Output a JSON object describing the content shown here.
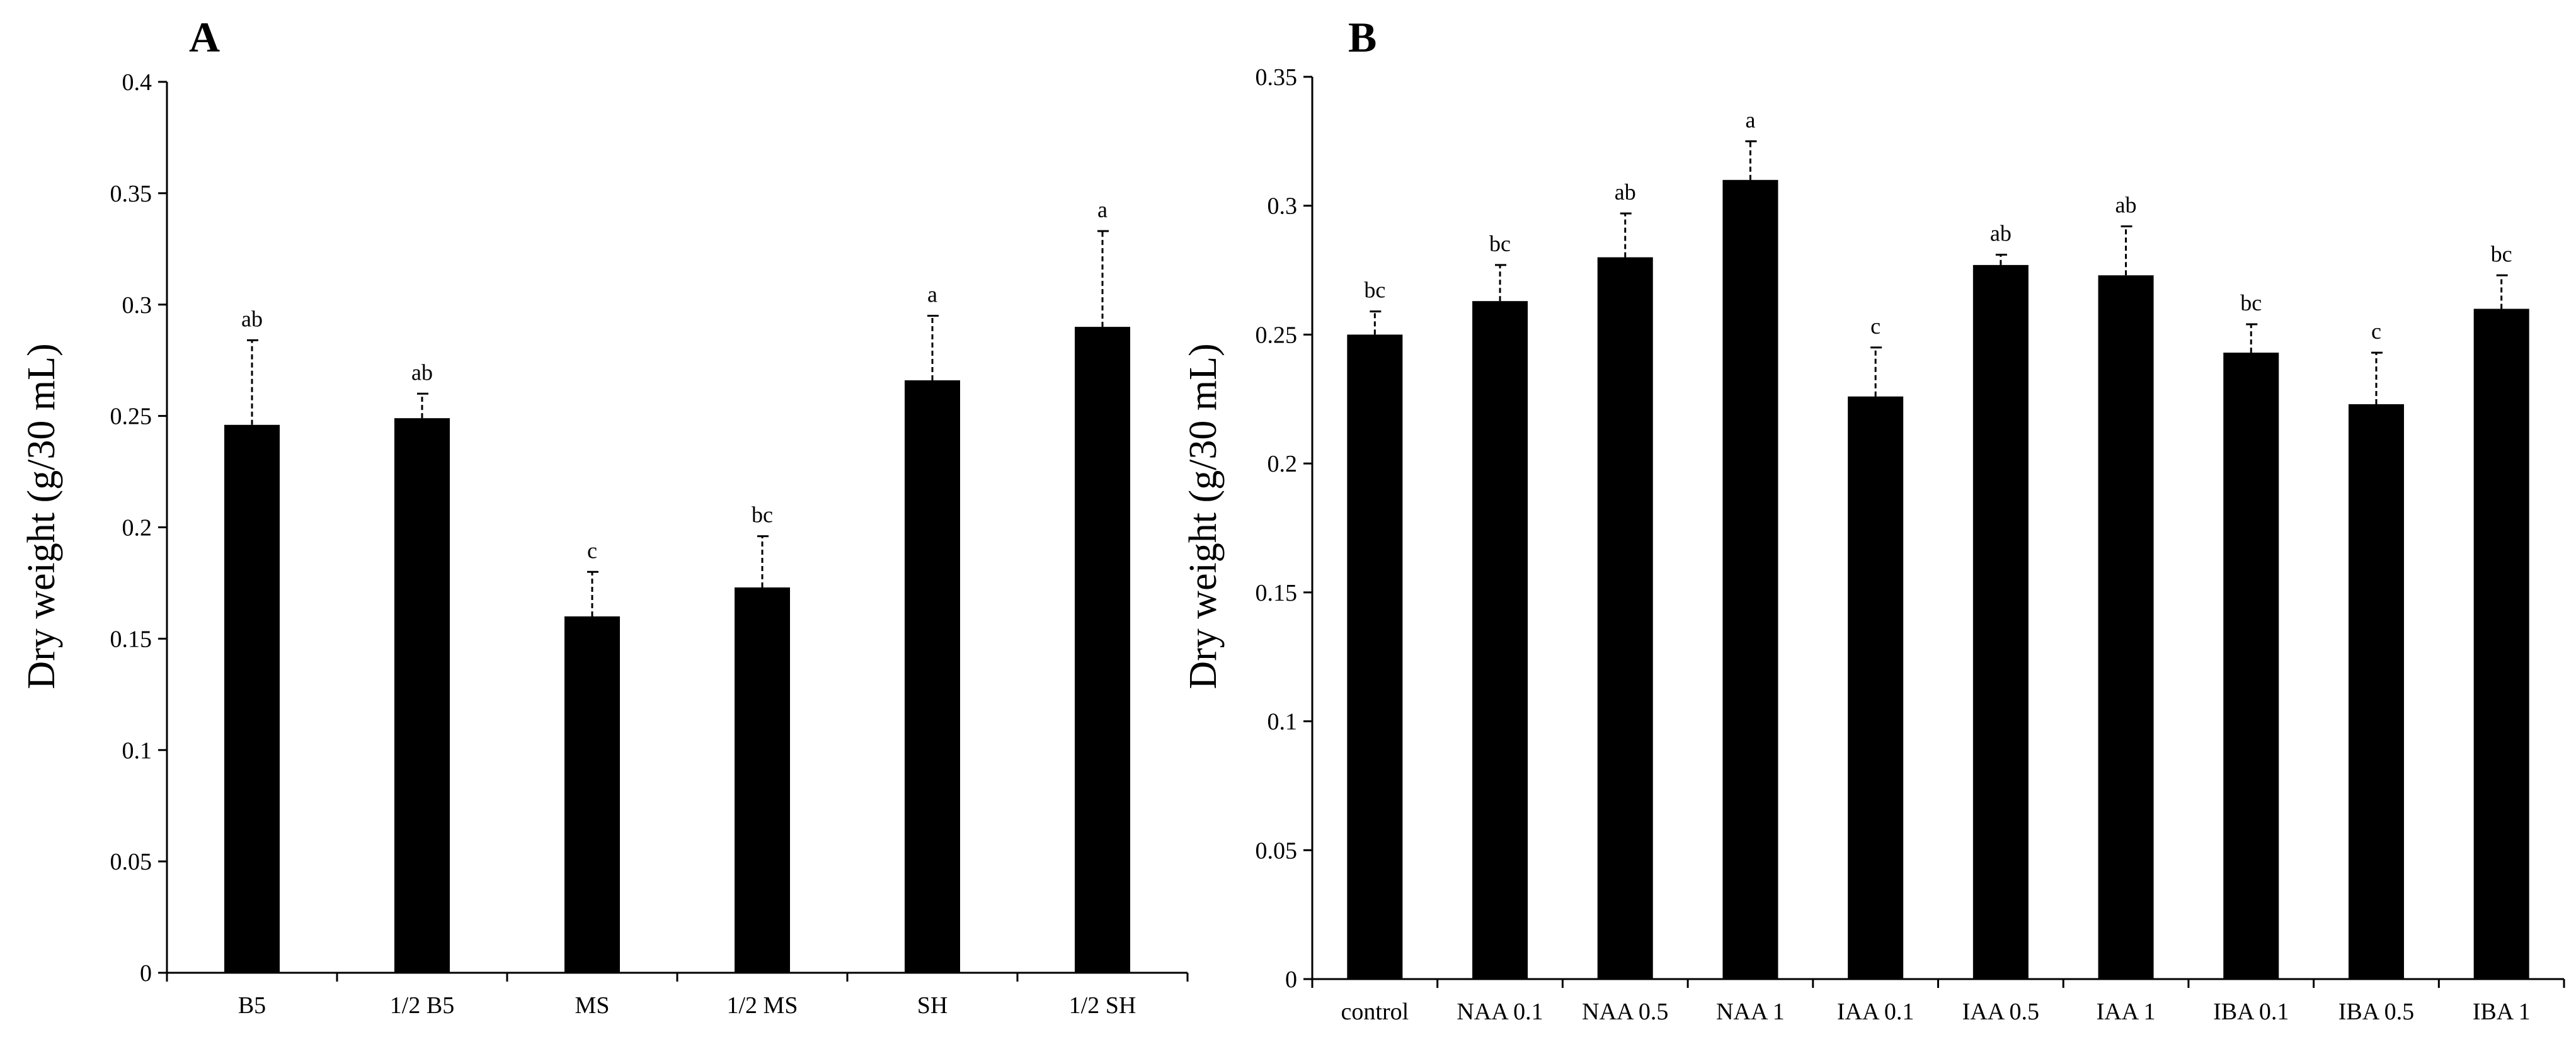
{
  "chart_data": [
    {
      "type": "bar",
      "panel": "A",
      "ylabel": "Dry weight (g/30 mL)",
      "ylim": [
        0,
        0.4
      ],
      "yticks": [
        "0",
        "0.05",
        "0.1",
        "0.15",
        "0.2",
        "0.25",
        "0.3",
        "0.35",
        "0.4"
      ],
      "ytick_values": [
        0,
        0.05,
        0.1,
        0.15,
        0.2,
        0.25,
        0.3,
        0.35,
        0.4
      ],
      "categories": [
        "B5",
        "1/2 B5",
        "MS",
        "1/2 MS",
        "SH",
        "1/2 SH"
      ],
      "values": [
        0.246,
        0.249,
        0.16,
        0.173,
        0.266,
        0.29
      ],
      "errors": [
        0.038,
        0.011,
        0.02,
        0.023,
        0.029,
        0.043
      ],
      "significance": [
        "ab",
        "ab",
        "c",
        "bc",
        "a",
        "a"
      ],
      "color": "#000000"
    },
    {
      "type": "bar",
      "panel": "B",
      "ylabel": "Dry weight (g/30 mL)",
      "ylim": [
        0,
        0.35
      ],
      "yticks": [
        "0",
        "0.05",
        "0.1",
        "0.15",
        "0.2",
        "0.25",
        "0.3",
        "0.35"
      ],
      "ytick_values": [
        0,
        0.05,
        0.1,
        0.15,
        0.2,
        0.25,
        0.3,
        0.35
      ],
      "categories": [
        "control",
        "NAA 0.1",
        "NAA 0.5",
        "NAA 1",
        "IAA 0.1",
        "IAA 0.5",
        "IAA 1",
        "IBA 0.1",
        "IBA 0.5",
        "IBA 1"
      ],
      "values": [
        0.25,
        0.263,
        0.28,
        0.31,
        0.226,
        0.277,
        0.273,
        0.243,
        0.223,
        0.26
      ],
      "errors": [
        0.009,
        0.014,
        0.017,
        0.015,
        0.019,
        0.004,
        0.019,
        0.011,
        0.02,
        0.013
      ],
      "significance": [
        "bc",
        "bc",
        "ab",
        "a",
        "c",
        "ab",
        "ab",
        "bc",
        "c",
        "bc"
      ],
      "color": "#000000"
    }
  ]
}
